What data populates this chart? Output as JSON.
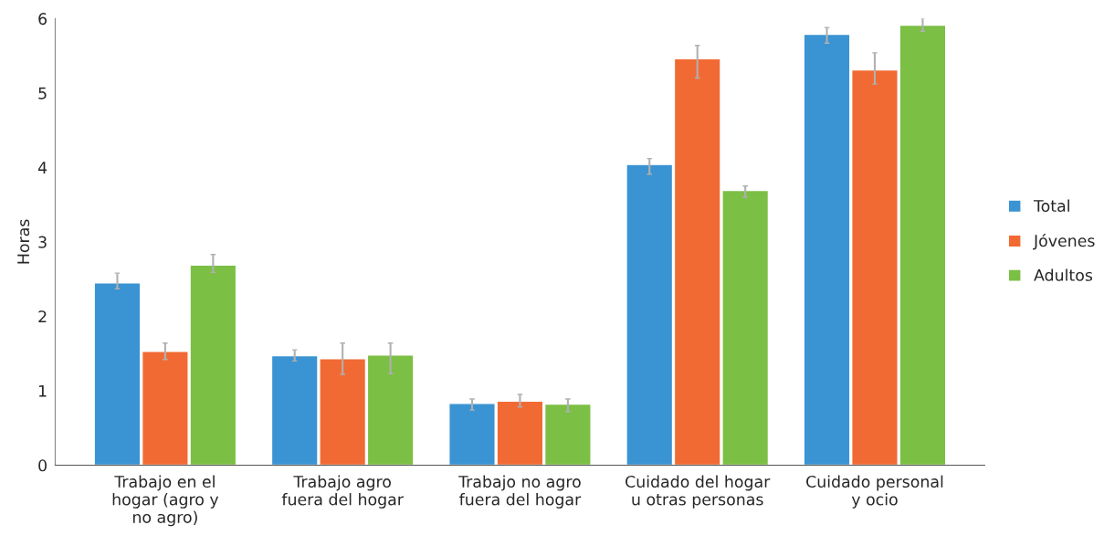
{
  "chart_data": {
    "type": "bar",
    "ylabel": "Horas",
    "categories": [
      "Trabajo en el\nhogar (agro y\nno agro)",
      "Trabajo agro\nfuera del hogar",
      "Trabajo no agro\nfuera del hogar",
      "Cuidado del hogar\nu otras personas",
      "Cuidado personal\ny ocio"
    ],
    "series": [
      {
        "name": "Total",
        "color": "#3a93d2",
        "values": [
          2.45,
          1.47,
          0.83,
          4.04,
          5.79
        ],
        "errors": [
          [
            2.37,
            2.58
          ],
          [
            1.4,
            1.55
          ],
          [
            0.74,
            0.89
          ],
          [
            3.91,
            4.12
          ],
          [
            5.67,
            5.88
          ]
        ]
      },
      {
        "name": "Jóvenes",
        "color": "#f26a33",
        "values": [
          1.53,
          1.43,
          0.86,
          5.46,
          5.31
        ],
        "errors": [
          [
            1.42,
            1.64
          ],
          [
            1.22,
            1.64
          ],
          [
            0.78,
            0.95
          ],
          [
            5.2,
            5.64
          ],
          [
            5.12,
            5.54
          ]
        ]
      },
      {
        "name": "Adultos",
        "color": "#7bbf45",
        "values": [
          2.69,
          1.48,
          0.82,
          3.69,
          5.91
        ],
        "errors": [
          [
            2.59,
            2.83
          ],
          [
            1.23,
            1.64
          ],
          [
            0.72,
            0.89
          ],
          [
            3.6,
            3.75
          ],
          [
            5.83,
            6.01
          ]
        ]
      }
    ],
    "ylim": [
      0,
      6
    ],
    "yticks": [
      0,
      1,
      2,
      3,
      4,
      5,
      6
    ],
    "grid": false,
    "legend": "right"
  }
}
